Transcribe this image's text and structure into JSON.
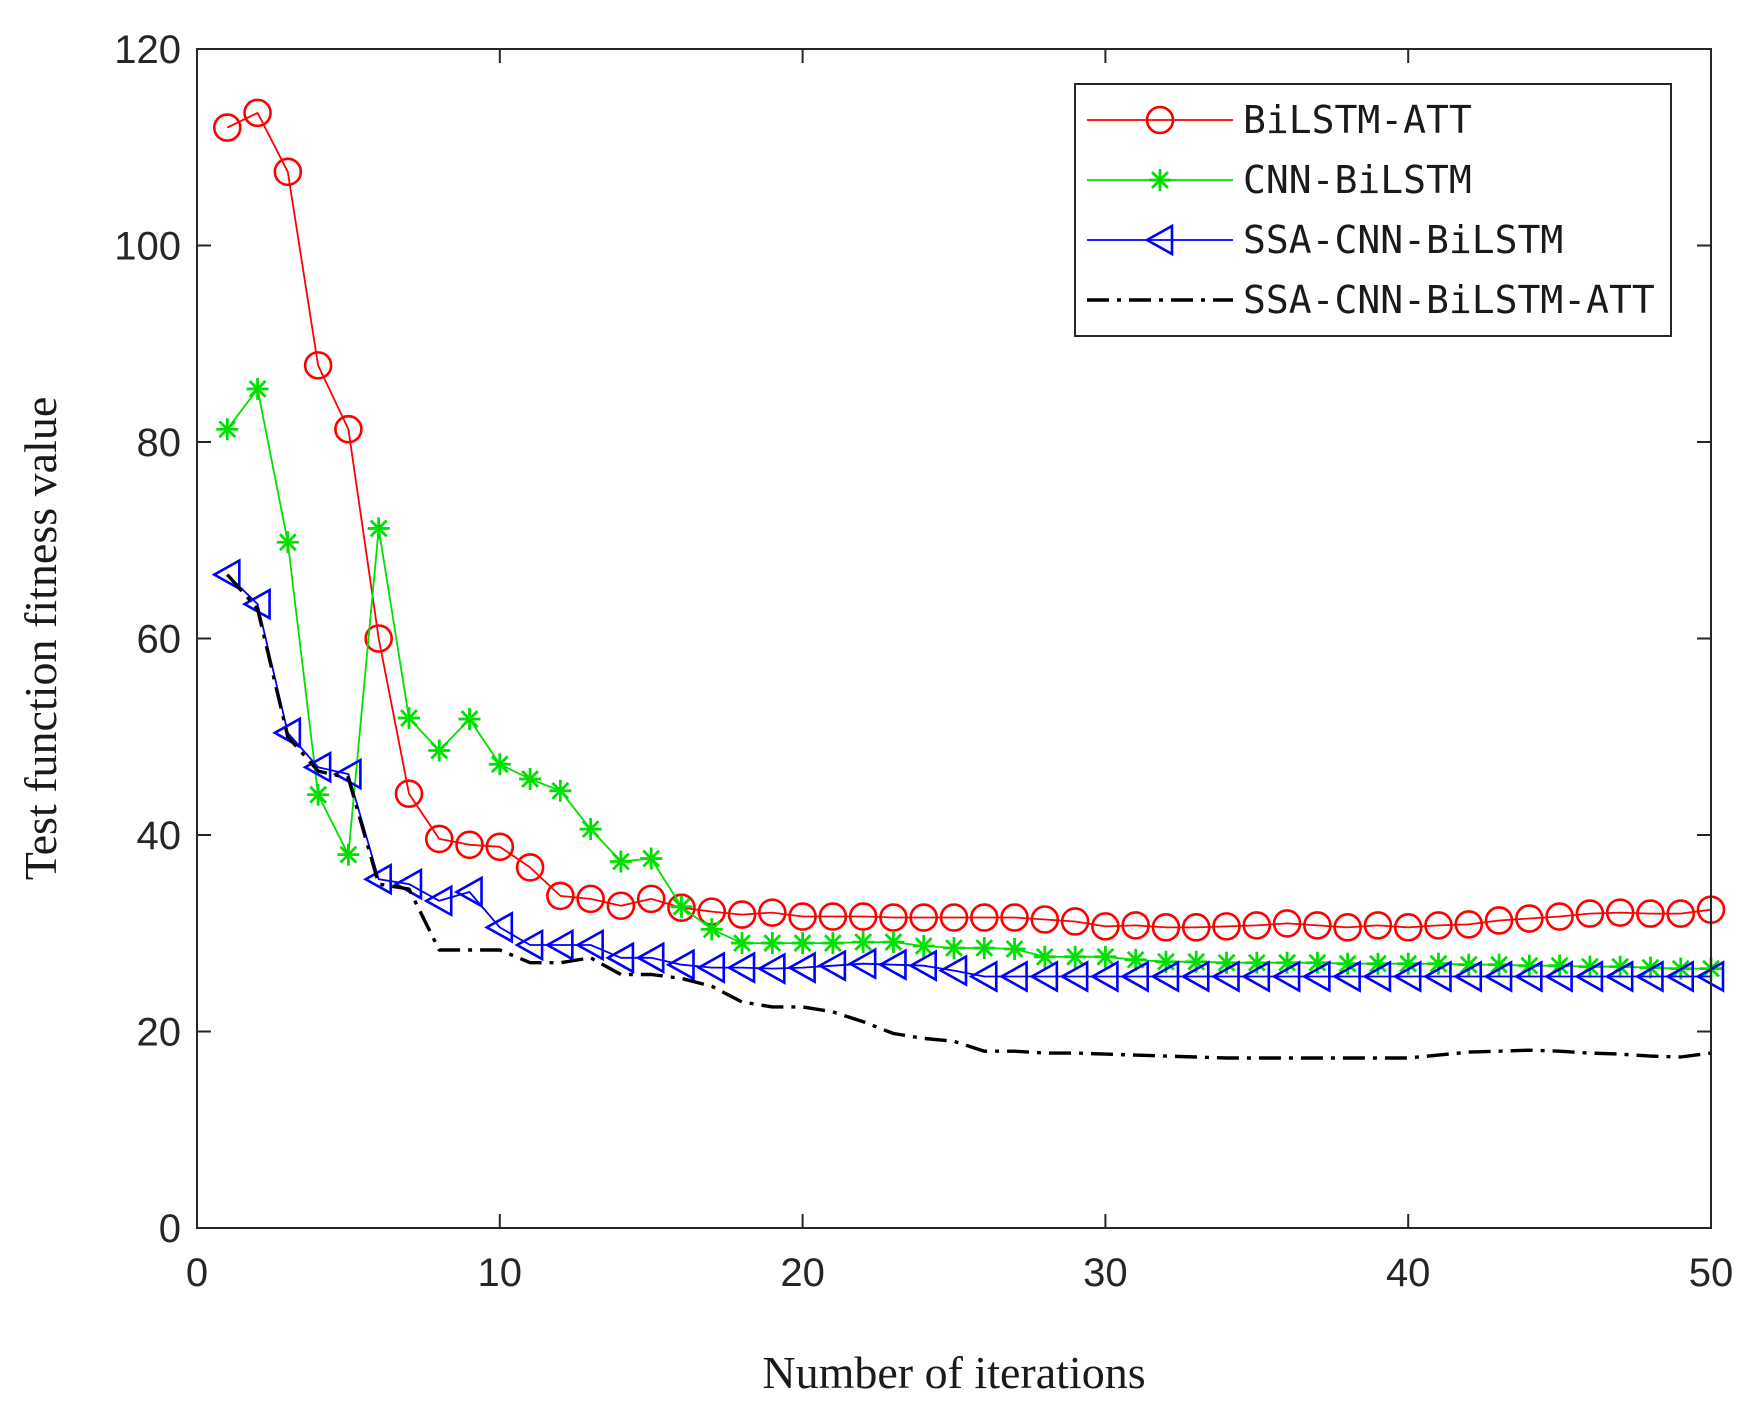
{
  "chart_data": {
    "type": "line",
    "title": "",
    "xlabel": "Number of iterations",
    "ylabel": "Test function fitness value",
    "xlim": [
      0,
      50
    ],
    "ylim": [
      0,
      120
    ],
    "xticks": [
      0,
      10,
      20,
      30,
      40,
      50
    ],
    "yticks": [
      0,
      20,
      40,
      60,
      80,
      100,
      120
    ],
    "grid": false,
    "legend_position": "top-right",
    "x": [
      1,
      2,
      3,
      4,
      5,
      6,
      7,
      8,
      9,
      10,
      11,
      12,
      13,
      14,
      15,
      16,
      17,
      18,
      19,
      20,
      21,
      22,
      23,
      24,
      25,
      26,
      27,
      28,
      29,
      30,
      31,
      32,
      33,
      34,
      35,
      36,
      37,
      38,
      39,
      40,
      41,
      42,
      43,
      44,
      45,
      46,
      47,
      48,
      49,
      50
    ],
    "series": [
      {
        "name": "BiLSTM-ATT",
        "color": "#ff0000",
        "marker": "circle",
        "line": "solid",
        "values": [
          112,
          113.5,
          107.5,
          87.8,
          81.3,
          60,
          44.2,
          39.6,
          39,
          38.8,
          36.7,
          33.8,
          33.5,
          32.8,
          33.5,
          32.6,
          32.2,
          31.9,
          32.1,
          31.7,
          31.7,
          31.7,
          31.6,
          31.6,
          31.6,
          31.6,
          31.6,
          31.4,
          31.2,
          30.7,
          30.8,
          30.6,
          30.6,
          30.7,
          30.8,
          31,
          30.8,
          30.6,
          30.8,
          30.6,
          30.8,
          30.9,
          31.3,
          31.5,
          31.7,
          32,
          32.1,
          32,
          32,
          32.4
        ]
      },
      {
        "name": "CNN-BiLSTM",
        "color": "#00e000",
        "marker": "asterisk",
        "line": "solid",
        "values": [
          81.3,
          85.4,
          69.8,
          44.1,
          38,
          71.2,
          51.9,
          48.6,
          51.8,
          47.2,
          45.7,
          44.5,
          40.6,
          37.3,
          37.6,
          32.7,
          30.4,
          29,
          29,
          29,
          29,
          29.1,
          29.1,
          28.7,
          28.5,
          28.5,
          28.4,
          27.6,
          27.6,
          27.6,
          27.3,
          27.1,
          27.1,
          27,
          27,
          27,
          27,
          26.9,
          26.9,
          26.9,
          26.9,
          26.8,
          26.8,
          26.7,
          26.7,
          26.6,
          26.6,
          26.5,
          26.4,
          26.4
        ]
      },
      {
        "name": "SSA-CNN-BiLSTM",
        "color": "#0000ff",
        "marker": "triangle-left",
        "line": "solid",
        "values": [
          66.5,
          63.5,
          50.4,
          46.9,
          46.2,
          35.5,
          35,
          33.3,
          34.2,
          30.6,
          28.8,
          28.8,
          28.8,
          27.5,
          27.5,
          26.8,
          26.5,
          26.5,
          26.4,
          26.5,
          26.7,
          26.9,
          26.8,
          26.7,
          26.2,
          25.6,
          25.6,
          25.6,
          25.6,
          25.6,
          25.6,
          25.6,
          25.6,
          25.6,
          25.6,
          25.6,
          25.6,
          25.6,
          25.6,
          25.6,
          25.6,
          25.6,
          25.6,
          25.6,
          25.6,
          25.6,
          25.6,
          25.6,
          25.6,
          25.6
        ]
      },
      {
        "name": "SSA-CNN-BiLSTM-ATT",
        "color": "#000000",
        "marker": "none",
        "line": "dash-dot",
        "values": [
          66.5,
          63,
          50,
          46.5,
          45.8,
          35,
          34.5,
          28.3,
          28.3,
          28.3,
          27,
          27,
          27.5,
          25.8,
          25.8,
          25.4,
          24.6,
          23,
          22.5,
          22.5,
          22,
          21,
          19.8,
          19.3,
          19,
          18,
          18,
          17.8,
          17.8,
          17.7,
          17.6,
          17.5,
          17.4,
          17.3,
          17.3,
          17.3,
          17.3,
          17.3,
          17.3,
          17.3,
          17.6,
          17.9,
          18,
          18.1,
          18,
          17.8,
          17.7,
          17.5,
          17.4,
          17.8
        ]
      }
    ]
  }
}
